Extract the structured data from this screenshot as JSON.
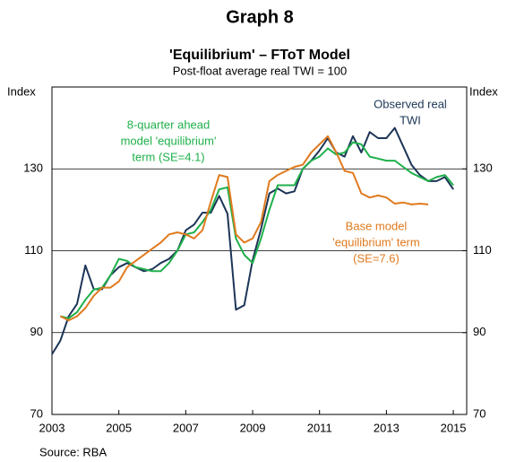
{
  "chart_data": {
    "type": "line",
    "title": "Graph 8",
    "subtitle": "'Equilibrium' – FToT Model",
    "note": "Post-float average real TWI = 100",
    "y_label": "Index",
    "y2_label": "Index",
    "source": "Source: RBA",
    "x": [
      2003,
      2003.25,
      2003.5,
      2003.75,
      2004,
      2004.25,
      2004.5,
      2004.75,
      2005,
      2005.25,
      2005.5,
      2005.75,
      2006,
      2006.25,
      2006.5,
      2006.75,
      2007,
      2007.25,
      2007.5,
      2007.75,
      2008,
      2008.25,
      2008.5,
      2008.75,
      2009,
      2009.25,
      2009.5,
      2009.75,
      2010,
      2010.25,
      2010.5,
      2010.75,
      2011,
      2011.25,
      2011.5,
      2011.75,
      2012,
      2012.25,
      2012.5,
      2012.75,
      2013,
      2013.25,
      2013.5,
      2013.75,
      2014,
      2014.25,
      2014.5,
      2014.75,
      2015
    ],
    "series": [
      {
        "name": "Observed real TWI",
        "color": "#1c3557",
        "values": [
          84.7,
          88,
          94,
          97,
          106.4,
          100.6,
          100.6,
          104,
          106,
          107,
          106,
          105,
          105.5,
          107,
          108,
          110,
          115,
          116.4,
          119.3,
          119.3,
          123.4,
          119,
          95.6,
          96.7,
          107.7,
          115.3,
          124,
          125.2,
          124,
          124.5,
          130,
          132,
          134.5,
          137.5,
          134,
          133,
          138,
          134,
          139,
          137.5,
          137.5,
          140,
          135.5,
          131,
          128.5,
          127,
          127,
          128,
          125
        ]
      },
      {
        "name": "8-quarter ahead model 'equilibrium' term (SE=4.1)",
        "color": "#1fb04b",
        "values": [
          null,
          94,
          93.5,
          95,
          98,
          100.5,
          101,
          104,
          108,
          107.5,
          106,
          105.5,
          105,
          105,
          107,
          110,
          114,
          114.5,
          117,
          120,
          125,
          125.5,
          113,
          109,
          107,
          113,
          120,
          126,
          126,
          126,
          130,
          132,
          133,
          135,
          133.5,
          134,
          136.5,
          136,
          133,
          132.5,
          132,
          132,
          130.5,
          129,
          128,
          127,
          128,
          128.5,
          126
        ]
      },
      {
        "name": "Base model 'equilibrium' term (SE=7.6)",
        "color": "#e07a1e",
        "values": [
          null,
          94,
          93,
          94,
          96,
          99,
          101,
          101,
          102.5,
          106,
          107.5,
          109,
          110.5,
          112,
          114,
          114.5,
          114,
          113,
          115,
          122,
          128.5,
          128,
          114,
          112,
          113,
          117,
          127,
          128.5,
          129.5,
          130.5,
          131,
          134,
          136,
          138,
          134,
          129.5,
          129,
          124,
          123,
          123.5,
          123,
          121.5,
          121.8,
          121.3,
          121.5,
          121.3,
          null,
          null,
          null
        ]
      }
    ],
    "annotations": [
      {
        "lines": [
          "Observed real",
          "TWI"
        ],
        "color": "#1c3557"
      },
      {
        "lines": [
          "8-quarter ahead",
          "model 'equilibrium'",
          "term (SE=4.1)"
        ],
        "color": "#1fb04b"
      },
      {
        "lines": [
          "Base model",
          "'equilibrium' term",
          "(SE=7.6)"
        ],
        "color": "#e07a1e"
      }
    ],
    "xlim": [
      2003,
      2015.4
    ],
    "xticks": [
      2003,
      2005,
      2007,
      2009,
      2011,
      2013,
      2015
    ],
    "ylim": [
      70,
      150
    ],
    "yticks": [
      70,
      90,
      110,
      130
    ],
    "y2lim": [
      70,
      150
    ],
    "y2ticks": [
      70,
      90,
      110,
      130
    ],
    "grid": true
  }
}
